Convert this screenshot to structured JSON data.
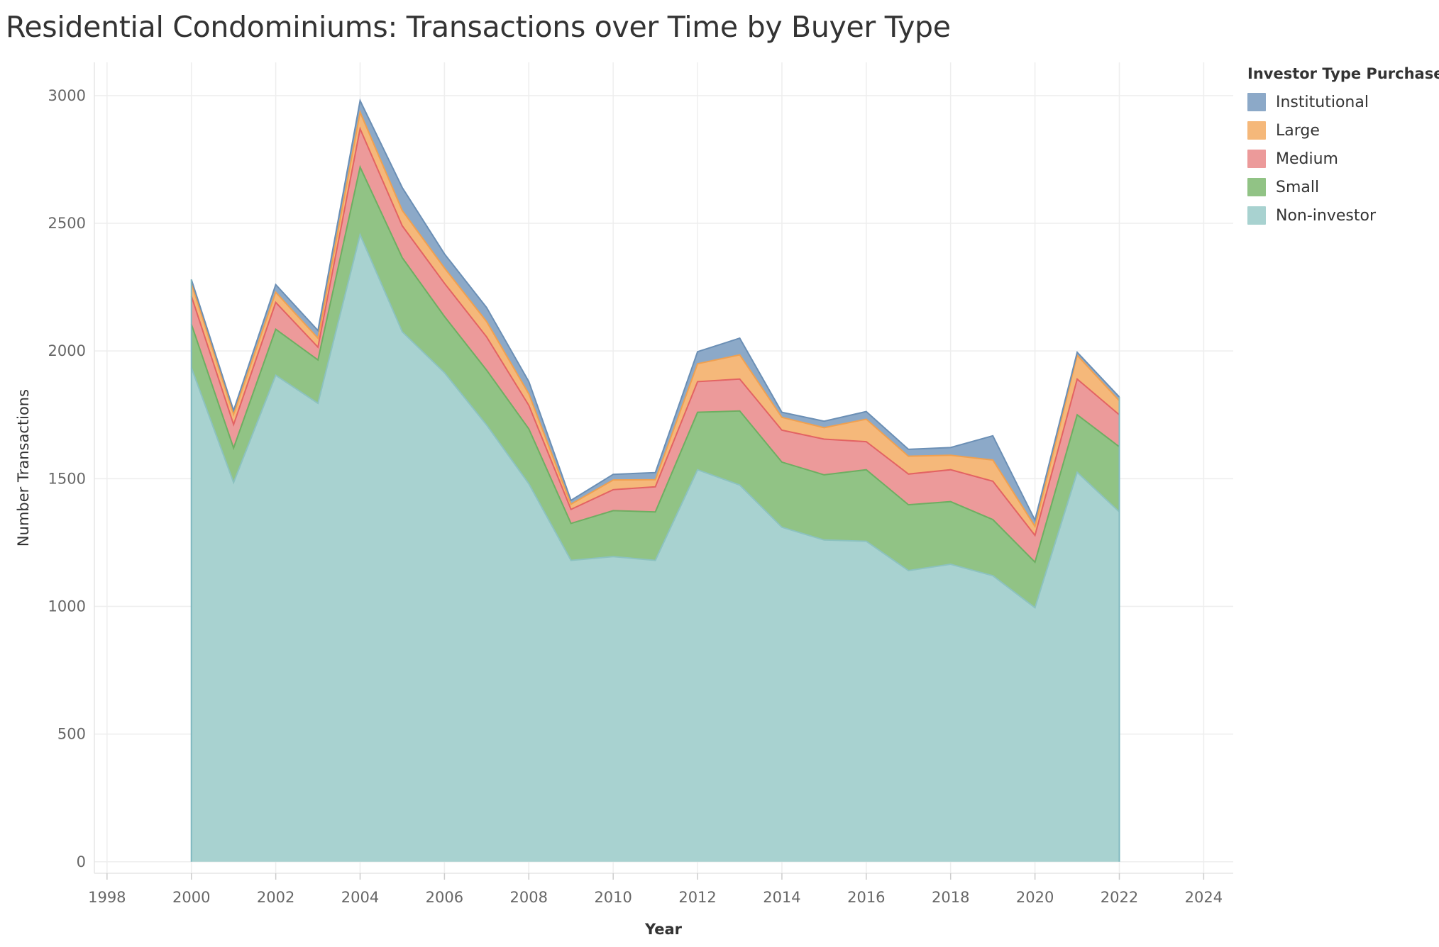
{
  "chart_data": {
    "type": "area",
    "stacked": true,
    "title": "Residential Condominiums: Transactions over Time by Buyer Type",
    "xlabel": "Year",
    "ylabel": "Number Transactions",
    "xlim": [
      1997.7,
      2024.7
    ],
    "ylim": [
      -45,
      3130
    ],
    "x_ticks": [
      1998,
      2000,
      2002,
      2004,
      2006,
      2008,
      2010,
      2012,
      2014,
      2016,
      2018,
      2020,
      2022,
      2024
    ],
    "y_ticks": [
      0,
      500,
      1000,
      1500,
      2000,
      2500,
      3000
    ],
    "grid": true,
    "legend_title": "Investor Type Purchase",
    "legend_position": "top-right",
    "x": [
      2000,
      2001,
      2002,
      2003,
      2004,
      2005,
      2006,
      2007,
      2008,
      2009,
      2010,
      2011,
      2012,
      2013,
      2014,
      2015,
      2016,
      2017,
      2018,
      2019,
      2020,
      2021,
      2022
    ],
    "series": [
      {
        "name": "Non-investor",
        "color": "#a8d2d0",
        "line_color": "#8cc2bf",
        "values": [
          1935,
          1485,
          1905,
          1795,
          2455,
          2075,
          1915,
          1710,
          1480,
          1180,
          1195,
          1180,
          1535,
          1475,
          1310,
          1260,
          1255,
          1140,
          1165,
          1120,
          995,
          1525,
          1370
        ]
      },
      {
        "name": "Small",
        "color": "#91c385",
        "line_color": "#6eae62",
        "values": [
          170,
          135,
          180,
          170,
          265,
          290,
          220,
          215,
          215,
          145,
          180,
          190,
          225,
          290,
          255,
          255,
          280,
          258,
          245,
          220,
          178,
          225,
          255
        ]
      },
      {
        "name": "Medium",
        "color": "#ec9a9a",
        "line_color": "#e36363",
        "values": [
          110,
          92,
          105,
          50,
          150,
          125,
          130,
          130,
          92,
          55,
          82,
          98,
          120,
          125,
          125,
          140,
          110,
          120,
          125,
          150,
          105,
          140,
          125
        ]
      },
      {
        "name": "Large",
        "color": "#f5b87a",
        "line_color": "#f0a050",
        "values": [
          50,
          40,
          40,
          35,
          65,
          60,
          60,
          60,
          45,
          20,
          38,
          28,
          70,
          95,
          50,
          45,
          88,
          70,
          57,
          83,
          35,
          93,
          55
        ]
      },
      {
        "name": "Institutional",
        "color": "#8ca9c8",
        "line_color": "#6b8fb5",
        "values": [
          15,
          15,
          30,
          30,
          45,
          90,
          55,
          55,
          48,
          15,
          22,
          28,
          47,
          65,
          20,
          25,
          30,
          27,
          30,
          95,
          25,
          12,
          15
        ]
      }
    ]
  }
}
